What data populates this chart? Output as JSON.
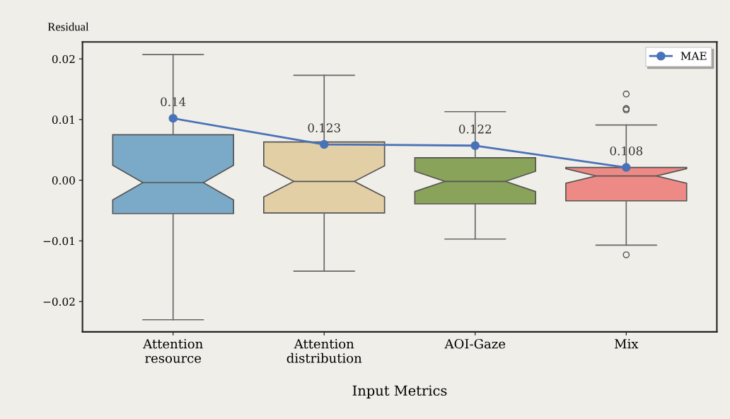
{
  "chart_data": {
    "type": "box",
    "xlabel": "Input Metrics",
    "ylabel": "Residual",
    "categories": [
      "Attention\nresource",
      "Attention\ndistribution",
      "AOI-Gaze",
      "Mix"
    ],
    "colors": [
      "#7aaac8",
      "#e2cfa6",
      "#8aa35a",
      "#ee8a85"
    ],
    "boxes": [
      {
        "low": -0.023,
        "q1": -0.0055,
        "median": -0.0004,
        "q3": 0.0075,
        "high": 0.0207
      },
      {
        "low": -0.015,
        "q1": -0.0054,
        "median": -0.0002,
        "q3": 0.0063,
        "high": 0.0173
      },
      {
        "low": -0.0097,
        "q1": -0.0039,
        "median": -0.0002,
        "q3": 0.0037,
        "high": 0.0113
      },
      {
        "low": -0.0107,
        "q1": -0.0034,
        "median": 0.0007,
        "q3": 0.0021,
        "high": 0.0091,
        "outliers": [
          0.0142,
          0.0118,
          0.0116,
          -0.0123
        ]
      }
    ],
    "series": [
      {
        "type": "line",
        "name": "MAE",
        "color": "#4a72b8",
        "values": [
          0.0102,
          0.0059,
          0.0057,
          0.0021
        ]
      }
    ],
    "annotations": [
      {
        "text": "0.14",
        "x": "Attention\nresource",
        "y": 0.0102
      },
      {
        "text": "0.123",
        "x": "Attention\ndistribution",
        "y": 0.0059
      },
      {
        "text": "0.122",
        "x": "AOI-Gaze",
        "y": 0.0057
      },
      {
        "text": "0.108",
        "x": "Mix",
        "y": 0.0021
      }
    ],
    "ylim": [
      -0.025,
      0.0228
    ],
    "yticks": [
      {
        "value": -0.02,
        "label": "−0.02"
      },
      {
        "value": -0.01,
        "label": "−0.01"
      },
      {
        "value": 0.0,
        "label": "0.00"
      },
      {
        "value": 0.01,
        "label": "0.01"
      },
      {
        "value": 0.02,
        "label": "0.02"
      }
    ],
    "marker": "circle",
    "legend": "top right",
    "grid": false
  }
}
